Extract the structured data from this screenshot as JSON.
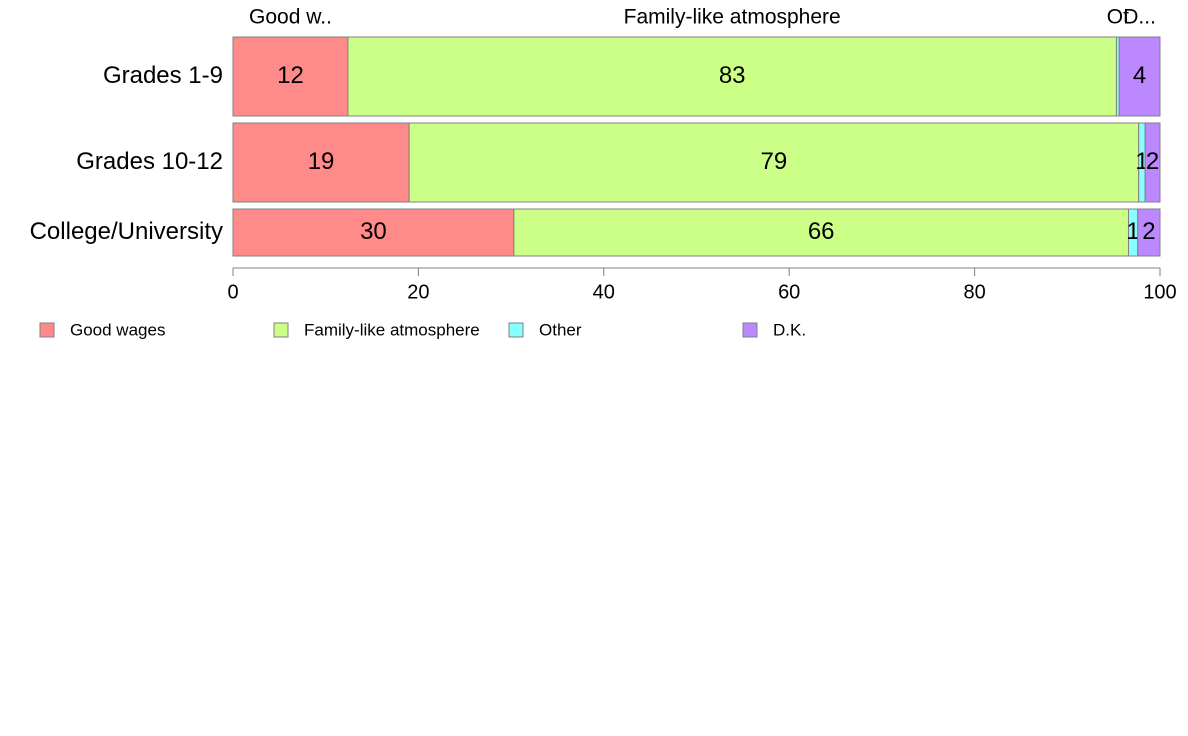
{
  "chart_data": {
    "type": "bar",
    "orientation": "horizontal",
    "stacked": true,
    "categories": [
      "Grades 1-9",
      "Grades 10-12",
      "College/University"
    ],
    "series": [
      {
        "name": "Good wages",
        "top_label": "Good w..",
        "color": "#FF8A8A",
        "values": [
          12.4,
          19.0,
          30.3
        ],
        "labels": [
          "12",
          "19",
          "30"
        ]
      },
      {
        "name": "Family-like atmosphere",
        "top_label": "Family-like atmosphere",
        "color": "#CCFF88",
        "values": [
          82.9,
          78.7,
          66.3
        ],
        "labels": [
          "83",
          "79",
          "66"
        ]
      },
      {
        "name": "Other",
        "top_label": "Ot",
        "color": "#88FFFF",
        "values": [
          0.3,
          0.7,
          1.0
        ],
        "labels": [
          "",
          "1",
          "1"
        ]
      },
      {
        "name": "D.K.",
        "top_label": "D...",
        "color": "#BB88FF",
        "values": [
          4.4,
          1.6,
          2.4
        ],
        "labels": [
          "4",
          "2",
          "2"
        ]
      }
    ],
    "xlim": [
      0,
      100
    ],
    "xticks": [
      0,
      20,
      40,
      60,
      80,
      100
    ],
    "xlabel": "",
    "ylabel": "",
    "grid": false,
    "legend_position": "bottom"
  }
}
